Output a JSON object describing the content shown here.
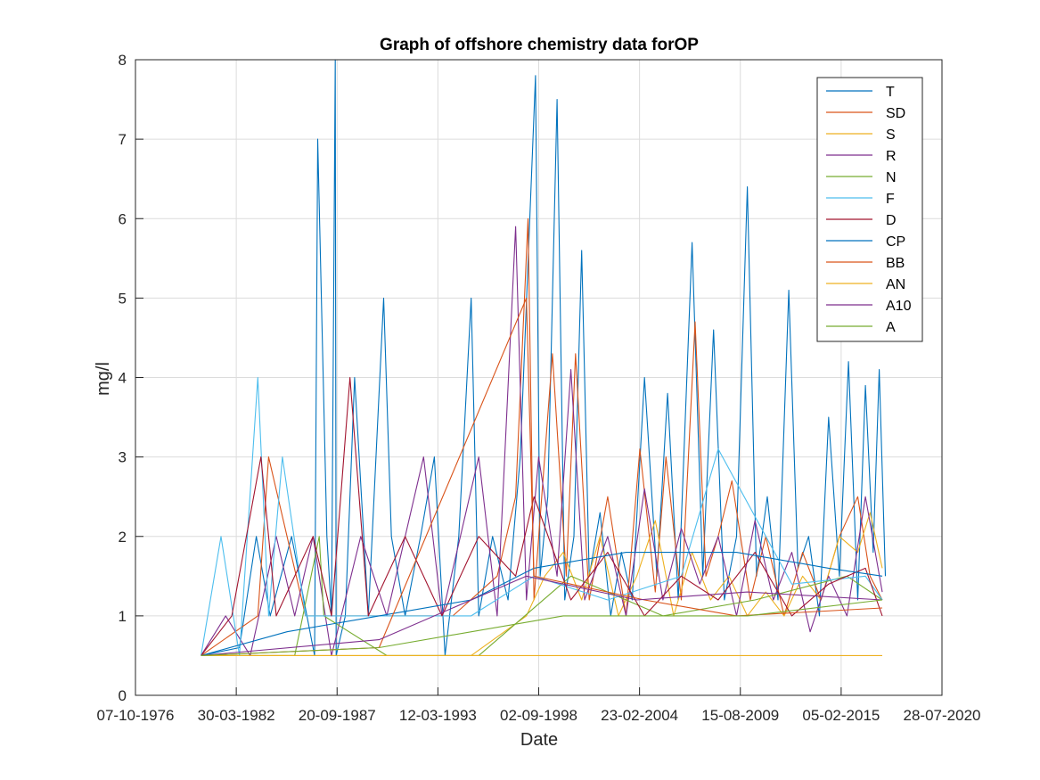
{
  "chart_data": {
    "type": "line",
    "title": "Graph of offshore chemistry data forOP",
    "xlabel": "Date",
    "ylabel": "mg/l",
    "xlim": [
      "07-10-1976",
      "28-07-2020"
    ],
    "ylim": [
      0,
      8
    ],
    "x_ticks": [
      "07-10-1976",
      "30-03-1982",
      "20-09-1987",
      "12-03-1993",
      "02-09-1998",
      "23-02-2004",
      "15-08-2009",
      "05-02-2015",
      "28-07-2020"
    ],
    "y_ticks": [
      "0",
      "1",
      "2",
      "3",
      "4",
      "5",
      "6",
      "7",
      "8"
    ],
    "grid": true,
    "legend_position": "top-right",
    "series": [
      {
        "name": "T",
        "color": "#0072BD",
        "points": [
          [
            "1980-05-01",
            0.5
          ],
          [
            "1982-06-01",
            0.6
          ],
          [
            "1983-05-01",
            2.0
          ],
          [
            "1984-02-01",
            1.0
          ],
          [
            "1985-04-01",
            2.0
          ],
          [
            "1986-07-01",
            0.5
          ],
          [
            "1986-09-01",
            7.0
          ],
          [
            "1987-03-01",
            2.0
          ],
          [
            "1987-06-01",
            1.0
          ],
          [
            "1987-08-15",
            8.0
          ],
          [
            "1987-09-01",
            0.5
          ],
          [
            "1988-03-01",
            1.0
          ],
          [
            "1988-09-01",
            4.0
          ],
          [
            "1989-06-01",
            1.0
          ],
          [
            "1990-04-01",
            5.0
          ],
          [
            "1990-09-01",
            2.0
          ],
          [
            "1991-06-01",
            1.0
          ],
          [
            "1992-04-01",
            2.0
          ],
          [
            "1993-01-01",
            3.0
          ],
          [
            "1993-08-01",
            0.5
          ],
          [
            "1994-05-01",
            2.0
          ],
          [
            "1995-01-01",
            5.0
          ],
          [
            "1995-06-01",
            1.0
          ],
          [
            "1996-03-01",
            2.0
          ],
          [
            "1997-01-01",
            1.2
          ],
          [
            "1997-09-01",
            3.0
          ],
          [
            "1998-07-01",
            7.8
          ],
          [
            "1998-10-01",
            1.5
          ],
          [
            "1999-03-01",
            2.5
          ],
          [
            "1999-09-01",
            7.5
          ],
          [
            "2000-02-01",
            1.2
          ],
          [
            "2000-08-01",
            2.0
          ],
          [
            "2001-01-01",
            5.6
          ],
          [
            "2001-06-01",
            1.5
          ],
          [
            "2002-01-01",
            2.3
          ],
          [
            "2002-08-01",
            1.0
          ],
          [
            "2003-03-01",
            1.8
          ],
          [
            "2003-10-01",
            1.2
          ],
          [
            "2004-06-01",
            4.0
          ],
          [
            "2005-02-01",
            1.5
          ],
          [
            "2005-09-01",
            3.8
          ],
          [
            "2006-04-01",
            1.2
          ],
          [
            "2007-01-01",
            5.7
          ],
          [
            "2007-08-01",
            1.5
          ],
          [
            "2008-03-01",
            4.6
          ],
          [
            "2008-10-01",
            1.2
          ],
          [
            "2009-06-01",
            2.0
          ],
          [
            "2010-01-01",
            6.4
          ],
          [
            "2010-07-01",
            1.5
          ],
          [
            "2011-02-01",
            2.5
          ],
          [
            "2011-09-01",
            1.2
          ],
          [
            "2012-04-01",
            5.1
          ],
          [
            "2012-10-01",
            1.6
          ],
          [
            "2013-05-01",
            2.0
          ],
          [
            "2013-12-01",
            1.0
          ],
          [
            "2014-06-01",
            3.5
          ],
          [
            "2015-01-01",
            1.5
          ],
          [
            "2015-07-01",
            4.2
          ],
          [
            "2016-01-01",
            1.2
          ],
          [
            "2016-06-01",
            3.9
          ],
          [
            "2016-11-01",
            1.8
          ],
          [
            "2017-03-01",
            4.1
          ],
          [
            "2017-07-01",
            1.5
          ]
        ]
      },
      {
        "name": "SD",
        "color": "#D95319",
        "points": [
          [
            "1980-05-01",
            0.5
          ],
          [
            "1983-06-01",
            1.0
          ],
          [
            "1984-01-01",
            3.0
          ],
          [
            "1986-01-01",
            1.0
          ],
          [
            "1988-06-01",
            1.0
          ],
          [
            "1991-01-01",
            1.0
          ],
          [
            "1994-01-01",
            1.0
          ],
          [
            "1996-06-01",
            1.5
          ],
          [
            "1997-06-01",
            2.5
          ],
          [
            "1998-02-01",
            6.0
          ],
          [
            "1998-06-01",
            1.2
          ],
          [
            "1999-06-01",
            4.3
          ],
          [
            "2000-03-01",
            1.5
          ],
          [
            "2000-09-01",
            4.3
          ],
          [
            "2001-06-01",
            1.2
          ],
          [
            "2002-06-01",
            2.5
          ],
          [
            "2003-06-01",
            1.0
          ],
          [
            "2004-03-01",
            3.1
          ],
          [
            "2005-01-01",
            1.3
          ],
          [
            "2005-08-01",
            3.0
          ],
          [
            "2006-06-01",
            1.2
          ],
          [
            "2007-03-01",
            4.7
          ],
          [
            "2007-10-01",
            1.5
          ],
          [
            "2008-06-01",
            2.0
          ],
          [
            "2009-03-01",
            2.7
          ],
          [
            "2010-03-01",
            1.2
          ],
          [
            "2011-01-01",
            2.0
          ],
          [
            "2012-01-01",
            1.0
          ],
          [
            "2013-01-01",
            1.8
          ],
          [
            "2014-01-01",
            1.2
          ],
          [
            "2015-01-01",
            2.0
          ],
          [
            "2016-01-01",
            2.5
          ],
          [
            "2016-09-01",
            1.5
          ],
          [
            "2017-05-01",
            1.2
          ]
        ]
      },
      {
        "name": "S",
        "color": "#EDB120",
        "points": [
          [
            "1980-05-01",
            0.5
          ],
          [
            "1985-01-01",
            0.5
          ],
          [
            "1990-01-01",
            0.5
          ],
          [
            "1995-01-01",
            0.5
          ],
          [
            "1998-01-01",
            1.0
          ],
          [
            "1999-01-01",
            1.5
          ],
          [
            "2000-01-01",
            1.8
          ],
          [
            "2001-01-01",
            1.2
          ],
          [
            "2002-01-01",
            2.0
          ],
          [
            "2003-01-01",
            1.0
          ],
          [
            "2004-01-01",
            1.5
          ],
          [
            "2005-01-01",
            2.2
          ],
          [
            "2006-01-01",
            1.0
          ],
          [
            "2007-01-01",
            1.8
          ],
          [
            "2008-01-01",
            1.2
          ],
          [
            "2009-01-01",
            1.5
          ],
          [
            "2010-01-01",
            1.0
          ],
          [
            "2011-01-01",
            1.3
          ],
          [
            "2012-01-01",
            1.0
          ],
          [
            "2013-01-01",
            1.5
          ],
          [
            "2014-01-01",
            1.2
          ],
          [
            "2015-01-01",
            2.0
          ],
          [
            "2016-01-01",
            1.8
          ],
          [
            "2016-09-01",
            2.3
          ],
          [
            "2017-05-01",
            1.6
          ]
        ]
      },
      {
        "name": "R",
        "color": "#7E2F8E",
        "points": [
          [
            "1980-05-01",
            0.5
          ],
          [
            "1981-09-01",
            1.0
          ],
          [
            "1983-01-01",
            0.5
          ],
          [
            "1984-06-01",
            2.0
          ],
          [
            "1985-06-01",
            1.0
          ],
          [
            "1986-06-01",
            2.0
          ],
          [
            "1987-06-01",
            0.5
          ],
          [
            "1989-01-01",
            2.0
          ],
          [
            "1990-06-01",
            1.0
          ],
          [
            "1992-06-01",
            3.0
          ],
          [
            "1993-06-01",
            1.0
          ],
          [
            "1995-06-01",
            3.0
          ],
          [
            "1996-06-01",
            1.0
          ],
          [
            "1997-06-01",
            5.9
          ],
          [
            "1998-01-01",
            1.2
          ],
          [
            "1998-09-01",
            3.0
          ],
          [
            "1999-09-01",
            1.5
          ],
          [
            "2000-06-01",
            4.1
          ],
          [
            "2001-03-01",
            1.2
          ],
          [
            "2002-06-01",
            2.0
          ],
          [
            "2003-06-01",
            1.0
          ],
          [
            "2004-06-01",
            2.6
          ],
          [
            "2005-06-01",
            1.2
          ],
          [
            "2006-06-01",
            2.1
          ],
          [
            "2007-06-01",
            1.4
          ],
          [
            "2008-06-01",
            2.0
          ],
          [
            "2009-06-01",
            1.0
          ],
          [
            "2010-06-01",
            2.2
          ],
          [
            "2011-06-01",
            1.2
          ],
          [
            "2012-06-01",
            1.8
          ],
          [
            "2013-06-01",
            0.8
          ],
          [
            "2014-06-01",
            1.5
          ],
          [
            "2015-06-01",
            1.0
          ],
          [
            "2016-06-01",
            2.5
          ],
          [
            "2017-05-01",
            1.3
          ]
        ]
      },
      {
        "name": "N",
        "color": "#77AC30",
        "points": [
          [
            "1980-05-01",
            0.5
          ],
          [
            "1985-06-01",
            0.5
          ],
          [
            "1986-10-01",
            2.0
          ],
          [
            "1987-01-01",
            1.0
          ],
          [
            "1990-06-01",
            0.5
          ],
          [
            "1995-06-01",
            0.5
          ],
          [
            "2000-06-01",
            1.5
          ],
          [
            "2005-06-01",
            1.0
          ],
          [
            "2010-06-01",
            1.2
          ],
          [
            "2015-06-01",
            1.5
          ],
          [
            "2017-05-01",
            1.2
          ]
        ]
      },
      {
        "name": "F",
        "color": "#4DBEEE",
        "points": [
          [
            "1980-05-01",
            0.5
          ],
          [
            "1981-06-01",
            2.0
          ],
          [
            "1982-06-01",
            0.5
          ],
          [
            "1983-06-01",
            4.0
          ],
          [
            "1984-01-01",
            1.0
          ],
          [
            "1984-10-01",
            3.0
          ],
          [
            "1986-01-01",
            1.0
          ],
          [
            "1990-01-01",
            1.0
          ],
          [
            "1995-01-01",
            1.0
          ],
          [
            "1998-06-01",
            1.5
          ],
          [
            "2002-06-01",
            1.2
          ],
          [
            "2006-06-01",
            1.5
          ],
          [
            "2008-06-01",
            3.1
          ],
          [
            "2012-06-01",
            1.4
          ],
          [
            "2016-06-01",
            1.5
          ],
          [
            "2017-05-01",
            1.2
          ]
        ]
      },
      {
        "name": "D",
        "color": "#A2142F",
        "points": [
          [
            "1980-05-01",
            0.5
          ],
          [
            "1982-01-01",
            1.0
          ],
          [
            "1983-08-01",
            3.0
          ],
          [
            "1984-06-01",
            1.0
          ],
          [
            "1986-06-01",
            2.0
          ],
          [
            "1987-06-01",
            1.0
          ],
          [
            "1988-06-01",
            4.0
          ],
          [
            "1989-06-01",
            1.0
          ],
          [
            "1991-06-01",
            2.0
          ],
          [
            "1993-06-01",
            1.0
          ],
          [
            "1995-06-01",
            2.0
          ],
          [
            "1997-06-01",
            1.5
          ],
          [
            "1998-06-01",
            2.5
          ],
          [
            "2000-06-01",
            1.2
          ],
          [
            "2002-06-01",
            1.8
          ],
          [
            "2004-06-01",
            1.0
          ],
          [
            "2006-06-01",
            1.5
          ],
          [
            "2008-06-01",
            1.2
          ],
          [
            "2010-06-01",
            1.8
          ],
          [
            "2012-06-01",
            1.0
          ],
          [
            "2014-06-01",
            1.4
          ],
          [
            "2016-06-01",
            1.6
          ],
          [
            "2017-05-01",
            1.0
          ]
        ]
      },
      {
        "name": "CP",
        "color": "#0072BD",
        "points": [
          [
            "1980-05-01",
            0.5
          ],
          [
            "1985-01-01",
            0.8
          ],
          [
            "1990-01-01",
            1.0
          ],
          [
            "1995-01-01",
            1.2
          ],
          [
            "1998-06-01",
            1.6
          ],
          [
            "2003-06-01",
            1.8
          ],
          [
            "2009-06-01",
            1.8
          ],
          [
            "2014-06-01",
            1.6
          ],
          [
            "2017-05-01",
            1.5
          ]
        ]
      },
      {
        "name": "BB",
        "color": "#D95319",
        "points": [
          [
            "1980-05-01",
            0.5
          ],
          [
            "1990-01-01",
            0.6
          ],
          [
            "1998-01-01",
            5.0
          ],
          [
            "1998-06-01",
            1.5
          ],
          [
            "2004-06-01",
            1.2
          ],
          [
            "2009-06-01",
            1.0
          ],
          [
            "2017-05-01",
            1.1
          ]
        ]
      },
      {
        "name": "AN",
        "color": "#EDB120",
        "points": [
          [
            "1980-05-01",
            0.5
          ],
          [
            "1990-01-01",
            0.5
          ],
          [
            "2000-01-01",
            0.5
          ],
          [
            "2010-01-01",
            0.5
          ],
          [
            "2017-05-01",
            0.5
          ]
        ]
      },
      {
        "name": "A10",
        "color": "#7E2F8E",
        "points": [
          [
            "1980-05-01",
            0.5
          ],
          [
            "1990-01-01",
            0.7
          ],
          [
            "1998-01-01",
            1.5
          ],
          [
            "2004-01-01",
            1.2
          ],
          [
            "2010-01-01",
            1.3
          ],
          [
            "2017-05-01",
            1.2
          ]
        ]
      },
      {
        "name": "A",
        "color": "#77AC30",
        "points": [
          [
            "1980-05-01",
            0.5
          ],
          [
            "1990-01-01",
            0.6
          ],
          [
            "2000-01-01",
            1.0
          ],
          [
            "2010-01-01",
            1.0
          ],
          [
            "2017-05-01",
            1.2
          ]
        ]
      }
    ]
  }
}
